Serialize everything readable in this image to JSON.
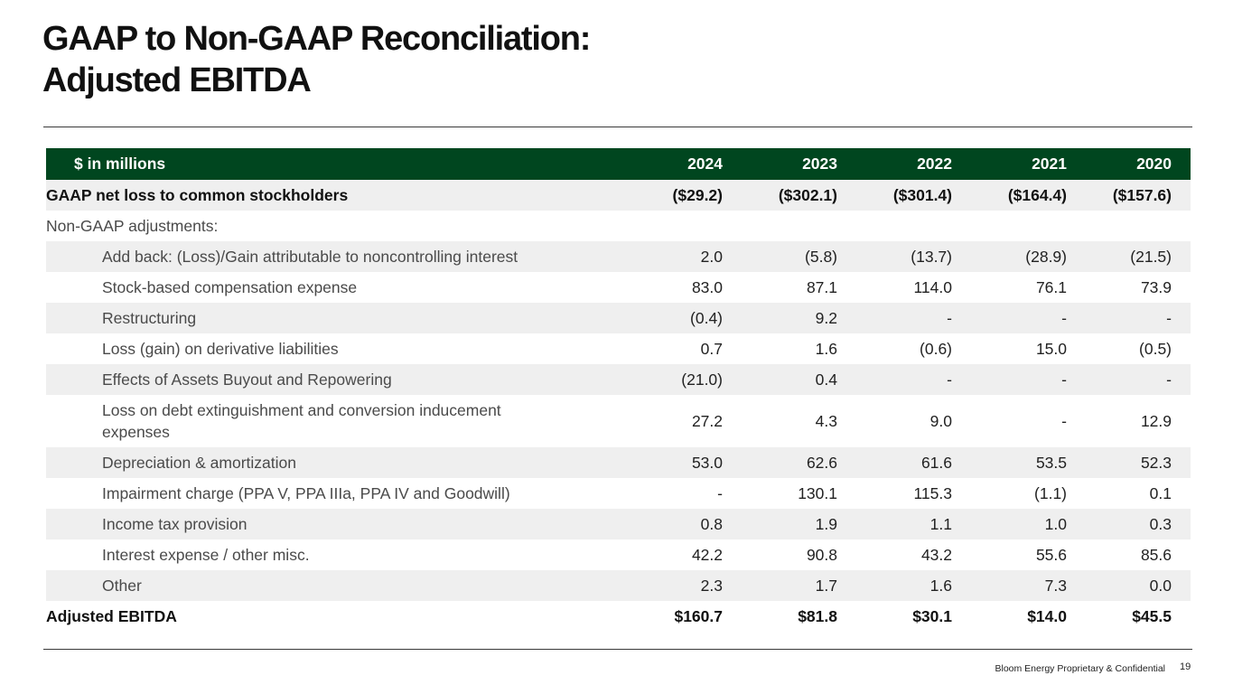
{
  "slide": {
    "title_line1": "GAAP to Non-GAAP Reconciliation:",
    "title_line2": "Adjusted EBITDA",
    "footer": "Bloom Energy Proprietary & Confidential",
    "page_number": "19"
  },
  "table": {
    "header": {
      "label": "$ in millions",
      "years": [
        "2024",
        "2023",
        "2022",
        "2021",
        "2020"
      ]
    },
    "rows": [
      {
        "label": "GAAP net loss to common stockholders",
        "values": [
          "($29.2)",
          "($302.1)",
          "($301.4)",
          "($164.4)",
          "($157.6)"
        ]
      },
      {
        "label": "Non-GAAP adjustments:",
        "values": [
          "",
          "",
          "",
          "",
          ""
        ]
      },
      {
        "label": "Add back: (Loss)/Gain attributable to noncontrolling interest",
        "values": [
          "2.0",
          "(5.8)",
          "(13.7)",
          "(28.9)",
          "(21.5)"
        ]
      },
      {
        "label": "Stock-based compensation expense",
        "values": [
          "83.0",
          "87.1",
          "114.0",
          "76.1",
          "73.9"
        ]
      },
      {
        "label": "Restructuring",
        "values": [
          "(0.4)",
          "9.2",
          "-",
          "-",
          "-"
        ]
      },
      {
        "label": "Loss (gain) on derivative liabilities",
        "values": [
          "0.7",
          "1.6",
          "(0.6)",
          "15.0",
          "(0.5)"
        ]
      },
      {
        "label": "Effects of Assets Buyout and Repowering",
        "values": [
          "(21.0)",
          "0.4",
          "-",
          "-",
          "-"
        ]
      },
      {
        "label": "Loss on debt extinguishment and conversion inducement expenses",
        "values": [
          "27.2",
          "4.3",
          "9.0",
          "-",
          "12.9"
        ]
      },
      {
        "label": "Depreciation & amortization",
        "values": [
          "53.0",
          "62.6",
          "61.6",
          "53.5",
          "52.3"
        ]
      },
      {
        "label": "Impairment charge (PPA V, PPA IIIa, PPA IV and Goodwill)",
        "values": [
          "-",
          "130.1",
          "115.3",
          "(1.1)",
          "0.1"
        ]
      },
      {
        "label": "Income tax provision",
        "values": [
          "0.8",
          "1.9",
          "1.1",
          "1.0",
          "0.3"
        ]
      },
      {
        "label": "Interest expense / other misc.",
        "values": [
          "42.2",
          "90.8",
          "43.2",
          "55.6",
          "85.6"
        ]
      },
      {
        "label": "Other",
        "values": [
          "2.3",
          "1.7",
          "1.6",
          "7.3",
          "0.0"
        ]
      },
      {
        "label": "Adjusted EBITDA",
        "values": [
          "$160.7",
          "$81.8",
          "$30.1",
          "$14.0",
          "$45.5"
        ]
      }
    ]
  }
}
